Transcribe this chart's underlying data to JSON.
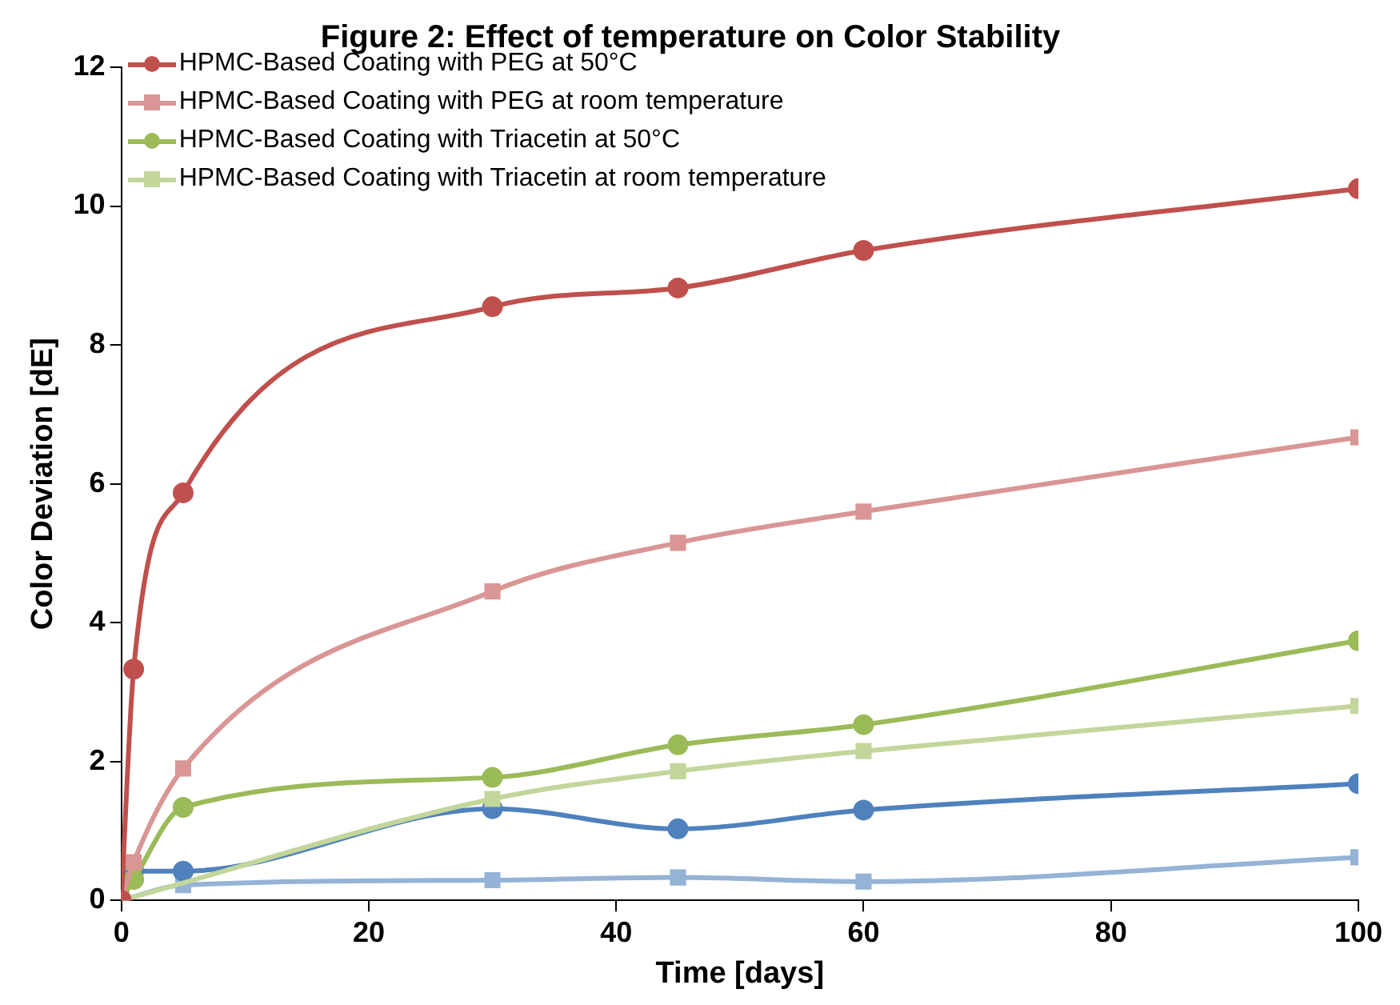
{
  "chart_data": {
    "type": "line",
    "title": "Figure 2: Effect of temperature on Color Stability",
    "xlabel": "Time [days]",
    "ylabel": "Color Deviation [dE]",
    "x": [
      0,
      1,
      5,
      30,
      45,
      60,
      100
    ],
    "series": [
      {
        "name": "HPMC-Based Coating with PEG at 50°C",
        "color": "#c0504d",
        "marker": "circle",
        "values": [
          0,
          3.33,
          5.87,
          8.55,
          8.82,
          9.36,
          10.25
        ]
      },
      {
        "name": "HPMC-Based Coating with PEG at room temperature",
        "color": "#d99694",
        "marker": "square",
        "values": [
          0,
          0.55,
          1.9,
          4.45,
          5.15,
          5.6,
          6.67
        ]
      },
      {
        "name": "HPMC-Based Coating with Triacetin at 50°C",
        "color": "#9bbb59",
        "marker": "circle",
        "values": [
          0,
          0.3,
          1.34,
          1.77,
          2.24,
          2.53,
          3.74
        ]
      },
      {
        "name": "HPMC-Based Coating with Triacetin at room temperature",
        "color": "#c3d69b",
        "marker": "square",
        "values": [
          0,
          null,
          null,
          1.46,
          1.86,
          2.15,
          2.8
        ]
      },
      {
        "color": "#4f81bd",
        "marker": "circle",
        "values": [
          0,
          0.42,
          0.42,
          1.32,
          1.03,
          1.3,
          1.68
        ]
      },
      {
        "color": "#95b3d7",
        "marker": "square",
        "values": [
          0,
          null,
          0.22,
          0.29,
          0.33,
          0.27,
          0.62
        ]
      }
    ],
    "xlim": [
      0,
      100
    ],
    "xticks": [
      0,
      20,
      40,
      60,
      80,
      100
    ],
    "ylim": [
      0,
      12
    ],
    "yticks": [
      0,
      2,
      4,
      6,
      8,
      10,
      12
    ],
    "grid": false,
    "legend": "top left"
  }
}
